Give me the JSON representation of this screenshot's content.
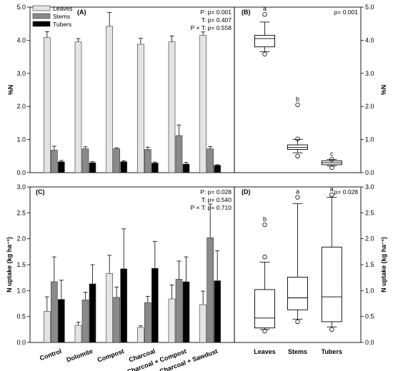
{
  "colors": {
    "leaves": "#e4e4e4",
    "stems": "#8a8a8a",
    "tubers": "#000000",
    "axis": "#000000",
    "box_fill": "#ffffff"
  },
  "chart_data": [
    {
      "panel": "(A)",
      "type": "bar",
      "ylabel": "%N",
      "right_ylabel": "",
      "ylim": [
        0,
        5
      ],
      "yticks": [
        "0.0",
        "1.0",
        "2.0",
        "3.0",
        "4.0",
        "5.0"
      ],
      "right_yticks": [
        "0.0",
        "1.0",
        "2.0",
        "3.0",
        "4.0",
        "5.0"
      ],
      "categories": [
        "Control",
        "Dolomite",
        "Compost",
        "Charcoal",
        "Charcoal + Compost",
        "Charcoal + Sawdust"
      ],
      "legend": {
        "position": "top-left"
      },
      "series": [
        {
          "name": "Leaves",
          "values": [
            4.08,
            3.95,
            4.42,
            3.88,
            3.95,
            4.15
          ],
          "err": [
            0.18,
            0.1,
            0.42,
            0.18,
            0.18,
            0.1
          ]
        },
        {
          "name": "Stems",
          "values": [
            0.68,
            0.72,
            0.72,
            0.7,
            1.12,
            0.72
          ],
          "err": [
            0.12,
            0.06,
            0.03,
            0.07,
            0.32,
            0.07
          ]
        },
        {
          "name": "Tubers",
          "values": [
            0.33,
            0.3,
            0.33,
            0.29,
            0.26,
            0.22
          ],
          "err": [
            0.04,
            0.03,
            0.03,
            0.03,
            0.05,
            0.02
          ]
        }
      ],
      "stats": [
        "P: p= 0.001",
        "T: p= 0.407",
        "P × T: p= 0.558"
      ]
    },
    {
      "panel": "(B)",
      "type": "box",
      "ylabel": "",
      "right_ylabel": "%N",
      "ylim": [
        0,
        5
      ],
      "right_yticks": [
        "0.0",
        "1.0",
        "2.0",
        "3.0",
        "4.0",
        "5.0"
      ],
      "categories": [
        "Leaves",
        "Stems",
        "Tubers"
      ],
      "boxes": [
        {
          "name": "Leaves",
          "min": 3.65,
          "q1": 3.8,
          "median": 4.05,
          "q3": 4.15,
          "max": 4.55,
          "outliers": [
            3.58,
            4.78
          ],
          "letter": "a"
        },
        {
          "name": "Stems",
          "min": 0.6,
          "q1": 0.7,
          "median": 0.76,
          "q3": 0.84,
          "max": 1.0,
          "outliers": [
            0.5,
            1.02,
            2.05
          ],
          "letter": "b"
        },
        {
          "name": "Tubers",
          "min": 0.2,
          "q1": 0.24,
          "median": 0.3,
          "q3": 0.36,
          "max": 0.4,
          "outliers": [
            0.15,
            0.4
          ],
          "letter": "c"
        }
      ],
      "stats": [
        "p= 0.001"
      ]
    },
    {
      "panel": "(C)",
      "type": "bar",
      "ylabel": "N uptake (kg ha⁻¹)",
      "right_ylabel": "",
      "ylim": [
        0,
        3.0
      ],
      "yticks": [
        "0.0",
        "0.5",
        "1.0",
        "1.5",
        "2.0",
        "2.5",
        "3.0"
      ],
      "right_yticks": [
        "0.0",
        "0.5",
        "1.0",
        "1.5",
        "2.0",
        "2.5",
        "3.0"
      ],
      "categories": [
        "Control",
        "Dolomite",
        "Compost",
        "Charcoal",
        "Charcoal + Compost",
        "Charcoal + Sawdust"
      ],
      "series": [
        {
          "name": "Leaves",
          "values": [
            0.6,
            0.33,
            1.33,
            0.29,
            0.84,
            0.73
          ],
          "err": [
            0.28,
            0.06,
            0.35,
            0.03,
            0.27,
            0.26
          ]
        },
        {
          "name": "Stems",
          "values": [
            1.17,
            0.82,
            0.87,
            0.77,
            1.22,
            2.02
          ],
          "err": [
            0.48,
            0.15,
            0.2,
            0.12,
            0.35,
            0.65
          ]
        },
        {
          "name": "Tubers",
          "values": [
            0.83,
            1.13,
            1.42,
            1.43,
            1.17,
            1.19
          ],
          "err": [
            0.37,
            0.37,
            0.77,
            0.52,
            0.48,
            0.58
          ]
        }
      ],
      "stats": [
        "P: p= 0.028",
        "T: p= 0.540",
        "P × T: p= 0.710"
      ]
    },
    {
      "panel": "(D)",
      "type": "box",
      "ylabel": "",
      "right_ylabel": "N uptake (kg ha⁻¹)",
      "ylim": [
        0,
        3.0
      ],
      "right_yticks": [
        "0.0",
        "0.5",
        "1.0",
        "1.5",
        "2.0",
        "2.5",
        "3.0"
      ],
      "categories": [
        "Leaves",
        "Stems",
        "Tubers"
      ],
      "boxes": [
        {
          "name": "Leaves",
          "min": 0.25,
          "q1": 0.28,
          "median": 0.47,
          "q3": 1.02,
          "max": 1.55,
          "outliers": [
            0.22,
            1.65,
            2.27
          ],
          "letter": "b"
        },
        {
          "name": "Stems",
          "min": 0.45,
          "q1": 0.63,
          "median": 0.86,
          "q3": 1.26,
          "max": 2.68,
          "outliers": [
            0.4,
            2.8
          ],
          "letter": "a"
        },
        {
          "name": "Tubers",
          "min": 0.3,
          "q1": 0.4,
          "median": 0.88,
          "q3": 1.84,
          "max": 2.8,
          "outliers": [
            0.25,
            2.85
          ],
          "letter": "a"
        }
      ],
      "stats": [
        "p= 0.028"
      ]
    }
  ]
}
